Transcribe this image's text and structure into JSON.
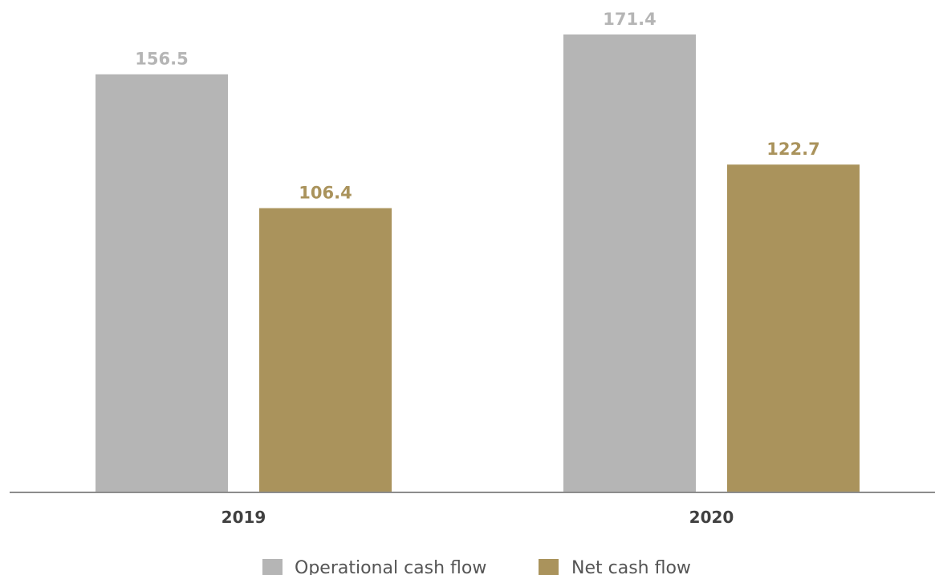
{
  "chart_data": {
    "type": "bar",
    "categories": [
      "2019",
      "2020"
    ],
    "series": [
      {
        "name": "Operational cash flow",
        "values": [
          156.5,
          171.4
        ],
        "color": "#b5b5b5",
        "label_color": "#b5b5b5"
      },
      {
        "name": "Net cash flow",
        "values": [
          106.4,
          122.7
        ],
        "color": "#aa935c",
        "label_color": "#aa935c"
      }
    ],
    "value_labels": [
      [
        "156.5",
        "171.4"
      ],
      [
        "106.4",
        "122.7"
      ]
    ],
    "ylim": [
      0,
      171.4
    ],
    "grid": false,
    "legend_position": "bottom-center"
  }
}
